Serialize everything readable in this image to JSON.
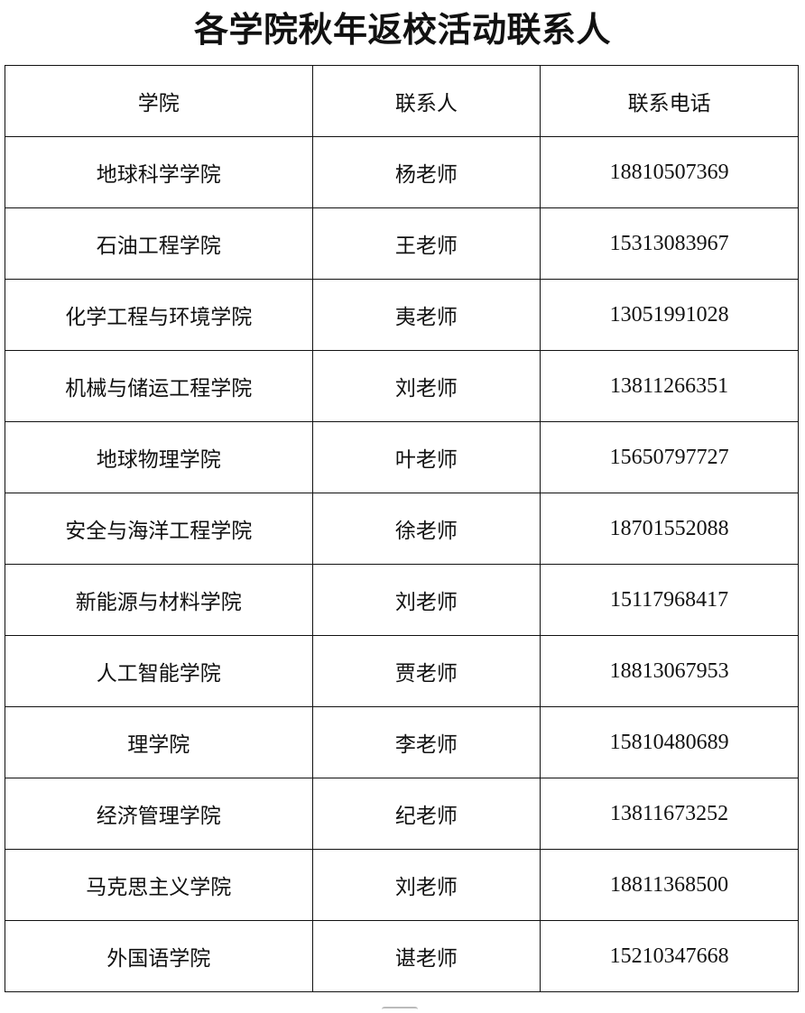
{
  "title": "各学院秋年返校活动联系人",
  "table": {
    "headers": [
      "学院",
      "联系人",
      "联系电话"
    ],
    "rows": [
      [
        "地球科学学院",
        "杨老师",
        "18810507369"
      ],
      [
        "石油工程学院",
        "王老师",
        "15313083967"
      ],
      [
        "化学工程与环境学院",
        "夷老师",
        "13051991028"
      ],
      [
        "机械与储运工程学院",
        "刘老师",
        "13811266351"
      ],
      [
        "地球物理学院",
        "叶老师",
        "15650797727"
      ],
      [
        "安全与海洋工程学院",
        "徐老师",
        "18701552088"
      ],
      [
        "新能源与材料学院",
        "刘老师",
        "15117968417"
      ],
      [
        "人工智能学院",
        "贾老师",
        "18813067953"
      ],
      [
        "理学院",
        "李老师",
        "15810480689"
      ],
      [
        "经济管理学院",
        "纪老师",
        "13811673252"
      ],
      [
        "马克思主义学院",
        "刘老师",
        "18811368500"
      ],
      [
        "外国语学院",
        "谌老师",
        "15210347668"
      ]
    ]
  }
}
